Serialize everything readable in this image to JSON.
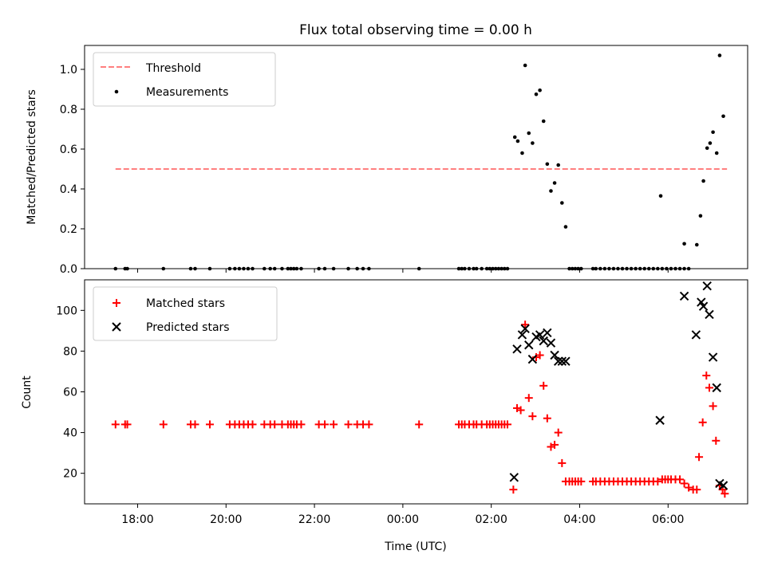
{
  "figure": {
    "title": "Flux total observing time = 0.00 h",
    "xlabel": "Time (UTC)"
  },
  "chart_data": [
    {
      "type": "scatter",
      "ylabel": "Matched/Predicted stars",
      "ylim": [
        0,
        1.12
      ],
      "yticks": [
        0.0,
        0.2,
        0.4,
        0.6,
        0.8,
        1.0
      ],
      "ytick_labels": [
        "0.0",
        "0.2",
        "0.4",
        "0.6",
        "0.8",
        "1.0"
      ],
      "legend_position": "upper-left",
      "threshold": {
        "name": "Threshold",
        "value": 0.5,
        "x_range": [
          "17:30",
          "07:20"
        ],
        "color": "#ff7f7f",
        "style": "dashed"
      },
      "series": [
        {
          "name": "Measurements",
          "marker": "dot",
          "color": "#000000",
          "points": [
            [
              "17:30",
              0
            ],
            [
              "17:43",
              0
            ],
            [
              "17:46",
              0
            ],
            [
              "18:35",
              0
            ],
            [
              "19:12",
              0
            ],
            [
              "19:18",
              0
            ],
            [
              "19:38",
              0
            ],
            [
              "20:05",
              0
            ],
            [
              "20:12",
              0
            ],
            [
              "20:18",
              0
            ],
            [
              "20:24",
              0
            ],
            [
              "20:30",
              0
            ],
            [
              "20:36",
              0
            ],
            [
              "20:52",
              0
            ],
            [
              "21:00",
              0
            ],
            [
              "21:06",
              0
            ],
            [
              "21:16",
              0
            ],
            [
              "21:24",
              0
            ],
            [
              "21:28",
              0
            ],
            [
              "21:32",
              0
            ],
            [
              "21:36",
              0
            ],
            [
              "21:42",
              0
            ],
            [
              "22:06",
              0
            ],
            [
              "22:14",
              0
            ],
            [
              "22:26",
              0
            ],
            [
              "22:46",
              0
            ],
            [
              "22:58",
              0
            ],
            [
              "23:06",
              0
            ],
            [
              "23:14",
              0
            ],
            [
              "00:22",
              0
            ],
            [
              "01:16",
              0
            ],
            [
              "01:20",
              0
            ],
            [
              "01:24",
              0
            ],
            [
              "01:30",
              0
            ],
            [
              "01:36",
              0
            ],
            [
              "01:40",
              0
            ],
            [
              "01:47",
              0
            ],
            [
              "01:54",
              0
            ],
            [
              "01:58",
              0
            ],
            [
              "02:02",
              0
            ],
            [
              "02:06",
              0
            ],
            [
              "02:10",
              0
            ],
            [
              "02:14",
              0
            ],
            [
              "02:18",
              0
            ],
            [
              "02:22",
              0
            ],
            [
              "02:32",
              0.66
            ],
            [
              "02:36",
              0.64
            ],
            [
              "02:42",
              0.58
            ],
            [
              "02:46",
              1.02
            ],
            [
              "02:51",
              0.68
            ],
            [
              "02:56",
              0.63
            ],
            [
              "03:01",
              0.875
            ],
            [
              "03:06",
              0.895
            ],
            [
              "03:11",
              0.74
            ],
            [
              "03:16",
              0.525
            ],
            [
              "03:21",
              0.39
            ],
            [
              "03:26",
              0.43
            ],
            [
              "03:31",
              0.52
            ],
            [
              "03:36",
              0.33
            ],
            [
              "03:41",
              0.21
            ],
            [
              "03:46",
              0
            ],
            [
              "03:50",
              0
            ],
            [
              "03:54",
              0
            ],
            [
              "03:58",
              0
            ],
            [
              "04:02",
              0
            ],
            [
              "04:18",
              0
            ],
            [
              "04:22",
              0
            ],
            [
              "04:28",
              0
            ],
            [
              "04:34",
              0
            ],
            [
              "04:40",
              0
            ],
            [
              "04:46",
              0
            ],
            [
              "04:52",
              0
            ],
            [
              "04:58",
              0
            ],
            [
              "05:04",
              0
            ],
            [
              "05:10",
              0
            ],
            [
              "05:16",
              0
            ],
            [
              "05:22",
              0
            ],
            [
              "05:28",
              0
            ],
            [
              "05:34",
              0
            ],
            [
              "05:40",
              0
            ],
            [
              "05:46",
              0
            ],
            [
              "05:52",
              0
            ],
            [
              "05:50",
              0.365
            ],
            [
              "05:58",
              0
            ],
            [
              "06:04",
              0
            ],
            [
              "06:10",
              0
            ],
            [
              "06:16",
              0
            ],
            [
              "06:22",
              0
            ],
            [
              "06:28",
              0
            ],
            [
              "06:22",
              0.125
            ],
            [
              "06:39",
              0.12
            ],
            [
              "06:44",
              0.265
            ],
            [
              "06:48",
              0.44
            ],
            [
              "06:53",
              0.605
            ],
            [
              "06:57",
              0.63
            ],
            [
              "07:01",
              0.685
            ],
            [
              "07:06",
              0.58
            ],
            [
              "07:10",
              1.07
            ],
            [
              "07:15",
              0.765
            ]
          ]
        }
      ]
    },
    {
      "type": "scatter",
      "ylabel": "Count",
      "ylim": [
        5,
        115
      ],
      "yticks": [
        20,
        40,
        60,
        80,
        100
      ],
      "ytick_labels": [
        "20",
        "40",
        "60",
        "80",
        "100"
      ],
      "legend_position": "upper-left",
      "series": [
        {
          "name": "Matched stars",
          "marker": "plus",
          "color": "#ff0000",
          "points": [
            [
              "17:30",
              44
            ],
            [
              "17:43",
              44
            ],
            [
              "17:46",
              44
            ],
            [
              "18:35",
              44
            ],
            [
              "19:12",
              44
            ],
            [
              "19:18",
              44
            ],
            [
              "19:38",
              44
            ],
            [
              "20:05",
              44
            ],
            [
              "20:12",
              44
            ],
            [
              "20:18",
              44
            ],
            [
              "20:24",
              44
            ],
            [
              "20:30",
              44
            ],
            [
              "20:36",
              44
            ],
            [
              "20:52",
              44
            ],
            [
              "21:00",
              44
            ],
            [
              "21:06",
              44
            ],
            [
              "21:16",
              44
            ],
            [
              "21:24",
              44
            ],
            [
              "21:28",
              44
            ],
            [
              "21:32",
              44
            ],
            [
              "21:36",
              44
            ],
            [
              "21:42",
              44
            ],
            [
              "22:06",
              44
            ],
            [
              "22:14",
              44
            ],
            [
              "22:26",
              44
            ],
            [
              "22:46",
              44
            ],
            [
              "22:58",
              44
            ],
            [
              "23:06",
              44
            ],
            [
              "23:14",
              44
            ],
            [
              "00:22",
              44
            ],
            [
              "01:16",
              44
            ],
            [
              "01:20",
              44
            ],
            [
              "01:24",
              44
            ],
            [
              "01:30",
              44
            ],
            [
              "01:36",
              44
            ],
            [
              "01:40",
              44
            ],
            [
              "01:47",
              44
            ],
            [
              "01:54",
              44
            ],
            [
              "01:58",
              44
            ],
            [
              "02:02",
              44
            ],
            [
              "02:06",
              44
            ],
            [
              "02:10",
              44
            ],
            [
              "02:14",
              44
            ],
            [
              "02:18",
              44
            ],
            [
              "02:22",
              44
            ],
            [
              "02:30",
              12
            ],
            [
              "02:35",
              52
            ],
            [
              "02:40",
              51
            ],
            [
              "02:46",
              93
            ],
            [
              "02:51",
              57
            ],
            [
              "02:56",
              48
            ],
            [
              "03:01",
              77
            ],
            [
              "03:06",
              78
            ],
            [
              "03:11",
              63
            ],
            [
              "03:16",
              47
            ],
            [
              "03:21",
              33
            ],
            [
              "03:26",
              34
            ],
            [
              "03:31",
              40
            ],
            [
              "03:36",
              25
            ],
            [
              "03:41",
              16
            ],
            [
              "03:46",
              16
            ],
            [
              "03:50",
              16
            ],
            [
              "03:54",
              16
            ],
            [
              "03:58",
              16
            ],
            [
              "04:02",
              16
            ],
            [
              "04:18",
              16
            ],
            [
              "04:22",
              16
            ],
            [
              "04:28",
              16
            ],
            [
              "04:34",
              16
            ],
            [
              "04:40",
              16
            ],
            [
              "04:46",
              16
            ],
            [
              "04:52",
              16
            ],
            [
              "04:58",
              16
            ],
            [
              "05:04",
              16
            ],
            [
              "05:10",
              16
            ],
            [
              "05:16",
              16
            ],
            [
              "05:22",
              16
            ],
            [
              "05:28",
              16
            ],
            [
              "05:34",
              16
            ],
            [
              "05:40",
              16
            ],
            [
              "05:46",
              16
            ],
            [
              "05:52",
              17
            ],
            [
              "05:56",
              17
            ],
            [
              "06:00",
              17
            ],
            [
              "06:04",
              17
            ],
            [
              "06:10",
              17
            ],
            [
              "06:16",
              17
            ],
            [
              "06:22",
              15
            ],
            [
              "06:28",
              13
            ],
            [
              "06:34",
              12
            ],
            [
              "06:39",
              12
            ],
            [
              "06:42",
              28
            ],
            [
              "06:47",
              45
            ],
            [
              "06:52",
              68
            ],
            [
              "06:56",
              62
            ],
            [
              "07:01",
              53
            ],
            [
              "07:05",
              36
            ],
            [
              "07:10",
              14
            ],
            [
              "07:14",
              12
            ],
            [
              "07:17",
              10
            ]
          ]
        },
        {
          "name": "Predicted stars",
          "marker": "x",
          "color": "#000000",
          "points": [
            [
              "02:31",
              18
            ],
            [
              "02:35",
              81
            ],
            [
              "02:42",
              88
            ],
            [
              "02:46",
              91
            ],
            [
              "02:51",
              83
            ],
            [
              "02:56",
              76
            ],
            [
              "03:01",
              87
            ],
            [
              "03:06",
              88
            ],
            [
              "03:11",
              85
            ],
            [
              "03:16",
              89
            ],
            [
              "03:21",
              84
            ],
            [
              "03:26",
              78
            ],
            [
              "03:31",
              75
            ],
            [
              "03:36",
              75
            ],
            [
              "03:41",
              75
            ],
            [
              "05:49",
              46
            ],
            [
              "06:22",
              107
            ],
            [
              "06:38",
              88
            ],
            [
              "06:45",
              104
            ],
            [
              "06:48",
              102
            ],
            [
              "06:53",
              112
            ],
            [
              "06:56",
              98
            ],
            [
              "07:01",
              77
            ],
            [
              "07:06",
              62
            ],
            [
              "07:10",
              15
            ],
            [
              "07:15",
              14
            ]
          ]
        }
      ]
    }
  ],
  "xaxis": {
    "xlim": [
      "16:48",
      "07:48"
    ],
    "ticks": [
      "18:00",
      "20:00",
      "22:00",
      "00:00",
      "02:00",
      "04:00",
      "06:00"
    ],
    "tick_labels": [
      "18:00",
      "20:00",
      "22:00",
      "00:00",
      "02:00",
      "04:00",
      "06:00"
    ]
  }
}
